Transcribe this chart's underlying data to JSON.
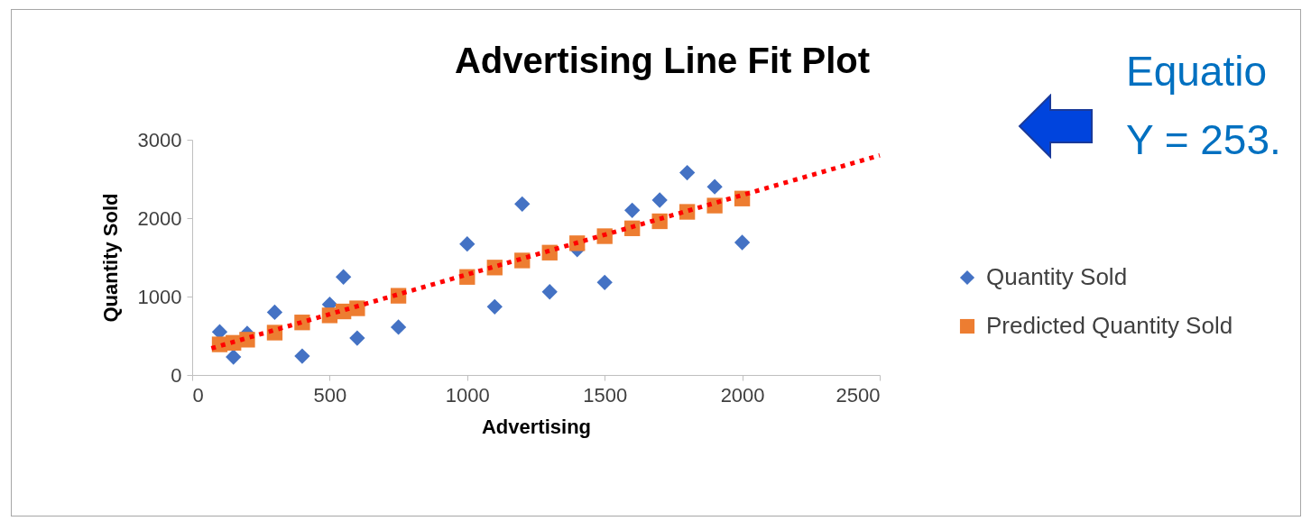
{
  "chart_data": {
    "type": "scatter",
    "title": "Advertising Line Fit  Plot",
    "xlabel": "Advertising",
    "ylabel": "Quantity Sold",
    "x": [
      100,
      150,
      200,
      300,
      400,
      500,
      550,
      600,
      750,
      1000,
      1100,
      1200,
      1300,
      1400,
      1500,
      1600,
      1700,
      1800,
      1900,
      2000
    ],
    "series": [
      {
        "name": "Quantity Sold",
        "color": "#4472c4",
        "marker": "diamond",
        "values": [
          550,
          230,
          530,
          800,
          240,
          900,
          1250,
          470,
          610,
          1670,
          870,
          2180,
          1060,
          1600,
          1180,
          2100,
          2230,
          2580,
          2400,
          1690
        ]
      },
      {
        "name": "Predicted Quantity Sold",
        "color": "#ed7d31",
        "marker": "square",
        "values": [
          390,
          410,
          450,
          540,
          670,
          760,
          810,
          850,
          1010,
          1250,
          1370,
          1460,
          1560,
          1680,
          1770,
          1870,
          1960,
          2080,
          2160,
          2250
        ]
      },
      {
        "type": "line",
        "color": "#ff0000",
        "line_style": "dotted",
        "marker": "none",
        "x": [
          70,
          2500
        ],
        "values": [
          340,
          2800
        ]
      }
    ],
    "xlim": [
      0,
      2500
    ],
    "xticks": [
      0,
      500,
      1000,
      1500,
      2000,
      2500
    ],
    "ylim": [
      0,
      3000
    ],
    "yticks": [
      0,
      1000,
      2000,
      3000
    ],
    "legend": "right",
    "annotations": [
      "Equatio",
      "Y = 253."
    ]
  }
}
